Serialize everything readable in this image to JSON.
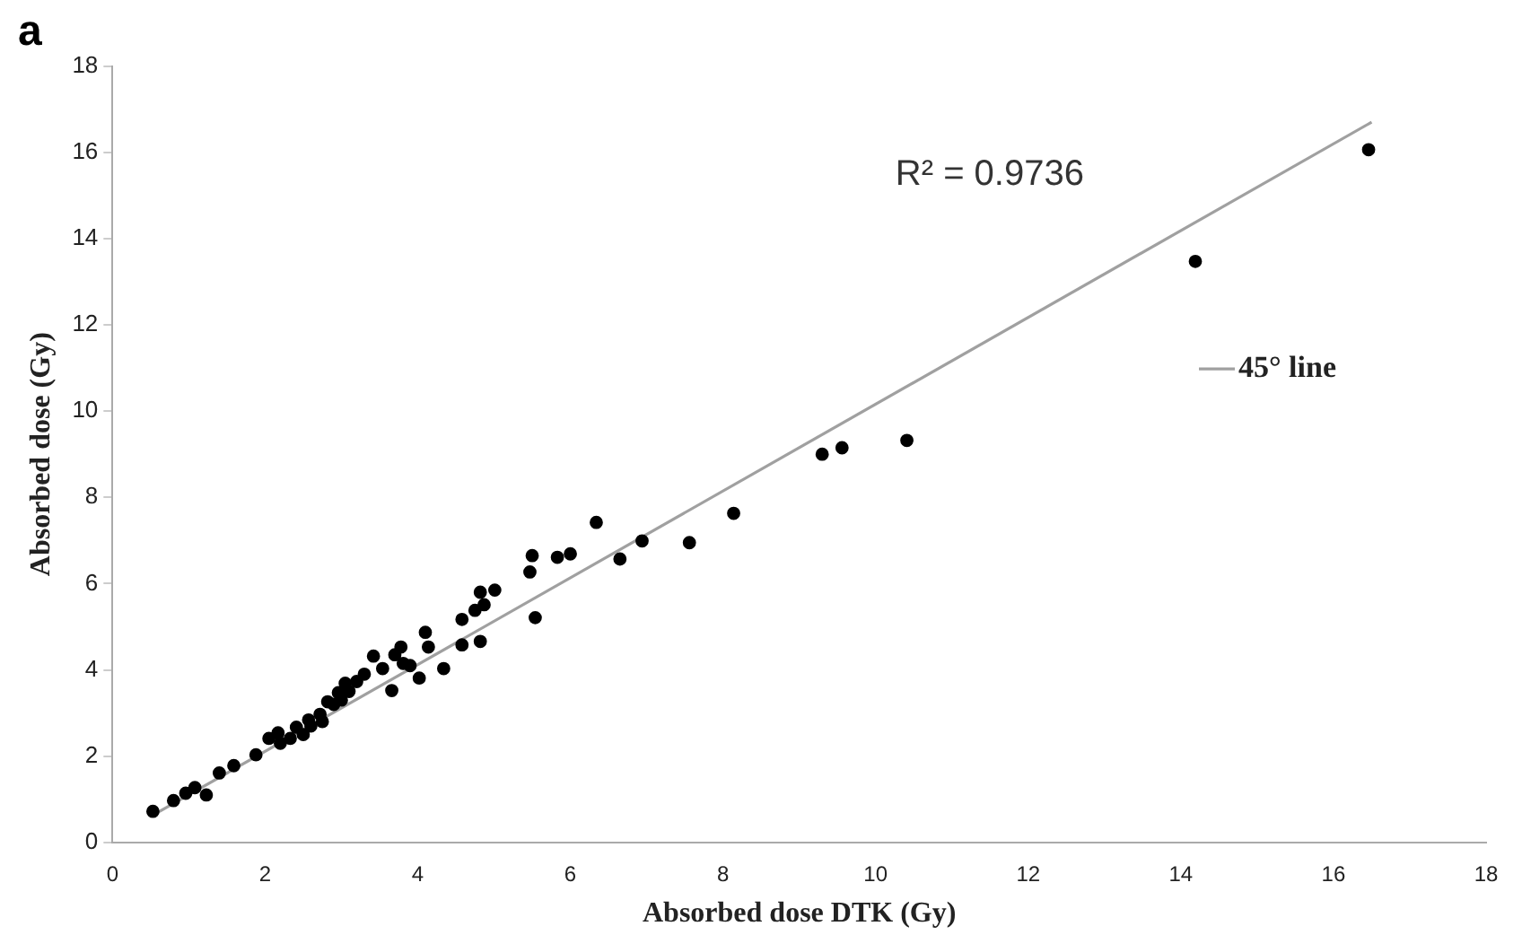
{
  "chart_data": {
    "type": "scatter",
    "title": "a",
    "xlabel": "Absorbed dose DTK (Gy)",
    "ylabel": "Absorbed dose (Gy)",
    "annotations": [
      "R² = 0.9736"
    ],
    "xlim": [
      0,
      18
    ],
    "ylim": [
      0,
      18
    ],
    "xticks": [
      0,
      2,
      4,
      6,
      8,
      10,
      12,
      14,
      16,
      18
    ],
    "yticks": [
      0,
      2,
      4,
      6,
      8,
      10,
      12,
      14,
      16,
      18
    ],
    "grid": false,
    "legend": "right",
    "marker": "circle",
    "series": [
      {
        "color": "#000000",
        "x": [
          16.46,
          14.19,
          10.41,
          9.56,
          9.3,
          8.14,
          7.56,
          6.94,
          6.65,
          6.34,
          6.0,
          5.83,
          5.5,
          5.47,
          5.54,
          0.53,
          0.8,
          0.96,
          1.08,
          1.23,
          1.4,
          1.59,
          1.88,
          2.05,
          2.17,
          2.33,
          2.41,
          2.57,
          2.72,
          2.82,
          2.96,
          3.05,
          3.2,
          3.42,
          3.54,
          3.66,
          3.78,
          3.81,
          4.02,
          4.1,
          4.14,
          4.34,
          4.58,
          4.58,
          4.75,
          4.82,
          4.82,
          5.01,
          4.87,
          2.6,
          2.9,
          3.1,
          3.3,
          2.2,
          2.5,
          2.75,
          3.0,
          3.7,
          3.9
        ],
        "values": [
          16.06,
          13.47,
          9.32,
          9.15,
          9.0,
          7.63,
          6.95,
          6.99,
          6.57,
          7.42,
          6.69,
          6.61,
          6.65,
          6.27,
          5.21,
          0.72,
          0.97,
          1.14,
          1.27,
          1.1,
          1.61,
          1.78,
          2.03,
          2.41,
          2.54,
          2.41,
          2.67,
          2.84,
          2.97,
          3.26,
          3.47,
          3.69,
          3.73,
          4.32,
          4.03,
          3.52,
          4.53,
          4.15,
          3.81,
          4.87,
          4.53,
          4.03,
          4.58,
          5.17,
          5.38,
          4.66,
          5.8,
          5.85,
          5.51,
          2.7,
          3.2,
          3.5,
          3.9,
          2.3,
          2.5,
          2.8,
          3.3,
          4.35,
          4.1
        ]
      },
      {
        "type": "line",
        "name": "45° line",
        "color": "#a0a0a0",
        "marker": "none",
        "x": [
          0.5,
          16.5
        ],
        "values": [
          0.6,
          16.7
        ]
      }
    ]
  }
}
